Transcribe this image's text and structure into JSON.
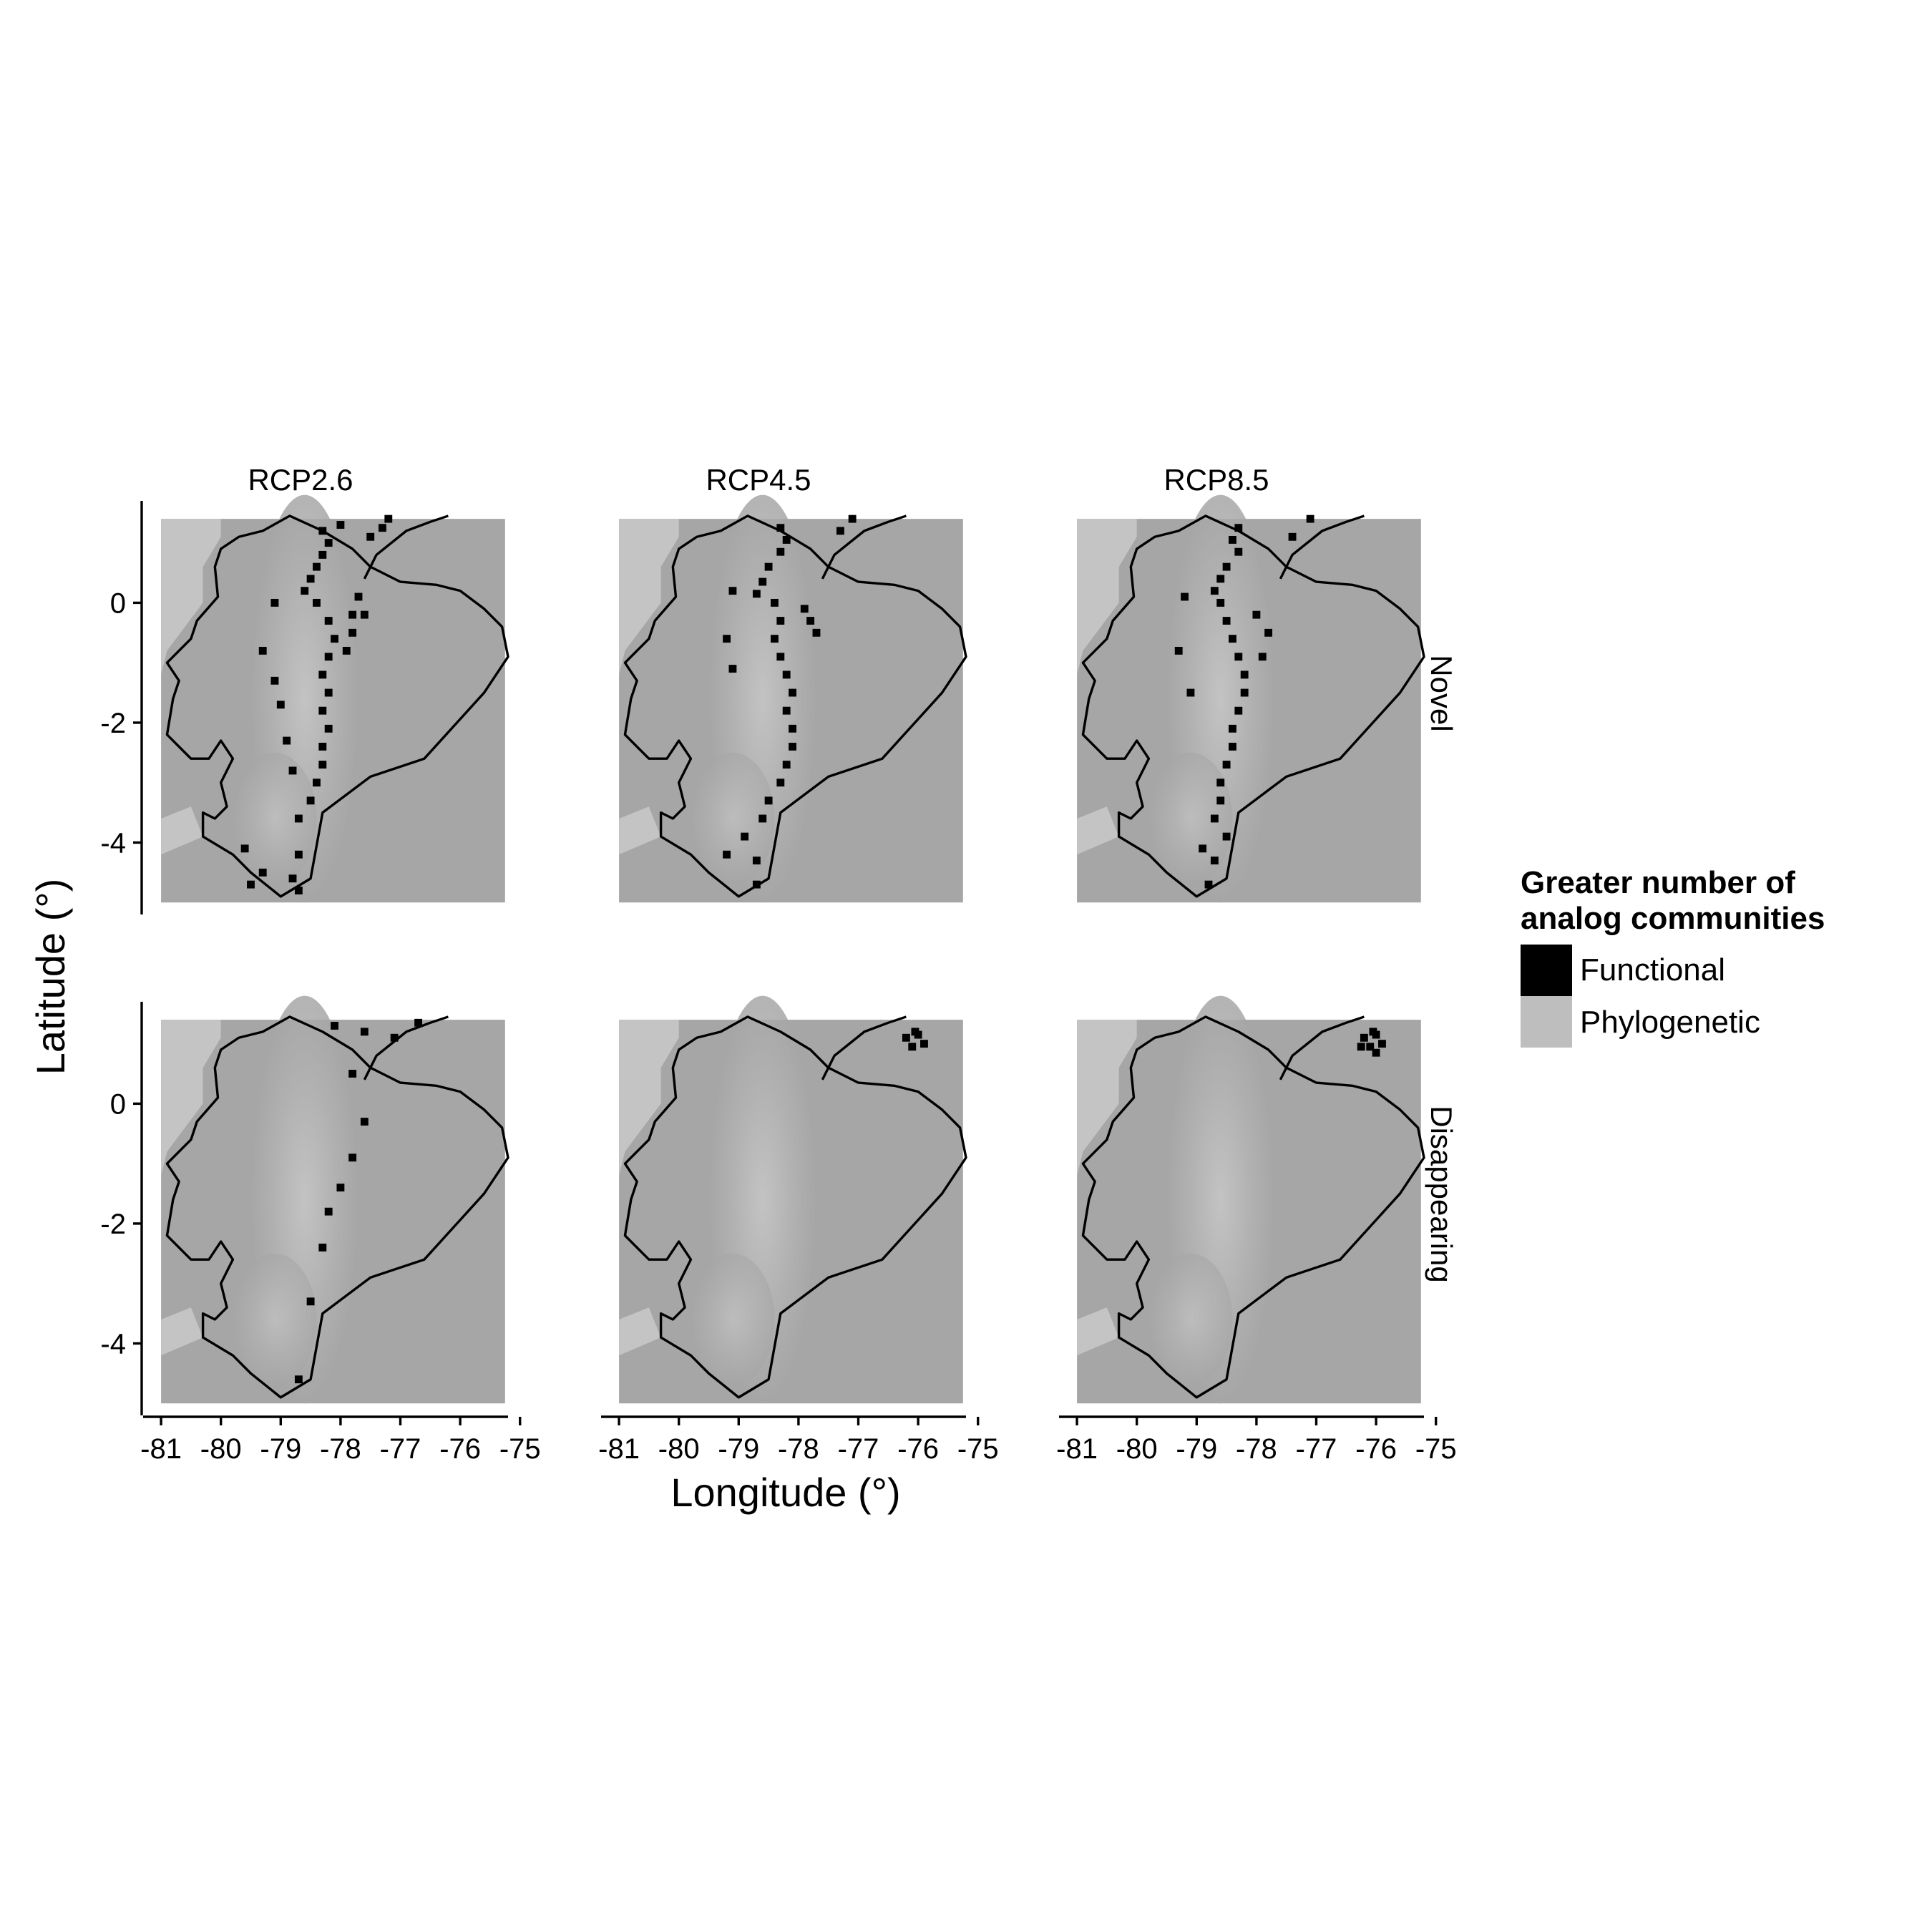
{
  "chart_data": {
    "type": "heatmap",
    "columns": [
      "RCP2.6",
      "RCP4.5",
      "RCP8.5"
    ],
    "rows": [
      "Novel",
      "Disappearing"
    ],
    "xlabel": "Longitude (°)",
    "ylabel": "Latitude (°)",
    "xlim": [
      -81.3,
      -75.2
    ],
    "ylim": [
      -5.2,
      1.7
    ],
    "x_ticks": [
      -81,
      -80,
      -79,
      -78,
      -77,
      -76,
      -75
    ],
    "x_tick_labels": [
      "-81",
      "-80",
      "-79",
      "-78",
      "-77",
      "-76",
      "-75"
    ],
    "y_ticks": [
      0,
      -2,
      -4
    ],
    "y_tick_labels": [
      "0",
      "-2",
      "-4"
    ],
    "grid": false,
    "legend": {
      "title_line1": "Greater number of",
      "title_line2": "analog communities",
      "placement": "right",
      "entries": [
        {
          "label": "Functional",
          "color": "#000000"
        },
        {
          "label": "Phylogenetic",
          "color": "#bebebe"
        }
      ]
    },
    "raster_extent": {
      "lon": [
        -81.0,
        -75.25
      ],
      "lat": [
        -5.0,
        1.4
      ]
    },
    "coastline": [
      [
        -78.85,
        1.45
      ],
      [
        -79.3,
        1.2
      ],
      [
        -79.7,
        1.1
      ],
      [
        -80.0,
        0.9
      ],
      [
        -80.1,
        0.6
      ],
      [
        -80.05,
        0.1
      ],
      [
        -80.4,
        -0.3
      ],
      [
        -80.5,
        -0.6
      ],
      [
        -80.9,
        -1.0
      ],
      [
        -80.7,
        -1.3
      ],
      [
        -80.8,
        -1.6
      ],
      [
        -80.9,
        -2.2
      ],
      [
        -80.5,
        -2.6
      ],
      [
        -80.2,
        -2.6
      ],
      [
        -80.0,
        -2.3
      ],
      [
        -79.8,
        -2.6
      ],
      [
        -80.0,
        -3.0
      ],
      [
        -79.9,
        -3.4
      ],
      [
        -80.1,
        -3.6
      ],
      [
        -80.3,
        -3.5
      ],
      [
        -80.3,
        -3.9
      ],
      [
        -79.8,
        -4.2
      ],
      [
        -79.5,
        -4.5
      ],
      [
        -79.0,
        -4.9
      ],
      [
        -78.5,
        -4.6
      ],
      [
        -78.3,
        -3.5
      ],
      [
        -77.5,
        -2.9
      ],
      [
        -76.6,
        -2.6
      ],
      [
        -75.6,
        -1.5
      ],
      [
        -75.2,
        -0.9
      ],
      [
        -75.3,
        -0.4
      ],
      [
        -75.6,
        -0.1
      ],
      [
        -76.0,
        0.2
      ],
      [
        -76.4,
        0.3
      ],
      [
        -77.0,
        0.35
      ],
      [
        -77.5,
        0.6
      ],
      [
        -77.8,
        0.9
      ],
      [
        -78.3,
        1.2
      ],
      [
        -78.85,
        1.45
      ]
    ],
    "north_border": [
      [
        -77.6,
        0.4
      ],
      [
        -77.4,
        0.8
      ],
      [
        -76.9,
        1.2
      ],
      [
        -76.5,
        1.35
      ],
      [
        -76.2,
        1.45
      ]
    ],
    "series": [
      {
        "name": "Novel",
        "panels": [
          {
            "column": "RCP2.6",
            "functional_cells": [
              [
                -78.3,
                1.2
              ],
              [
                -78.2,
                1.0
              ],
              [
                -78.3,
                0.8
              ],
              [
                -78.4,
                0.6
              ],
              [
                -78.5,
                0.4
              ],
              [
                -78.6,
                0.2
              ],
              [
                -78.4,
                0.0
              ],
              [
                -78.2,
                -0.3
              ],
              [
                -78.1,
                -0.6
              ],
              [
                -78.2,
                -0.9
              ],
              [
                -78.3,
                -1.2
              ],
              [
                -78.2,
                -1.5
              ],
              [
                -78.3,
                -1.8
              ],
              [
                -78.2,
                -2.1
              ],
              [
                -78.3,
                -2.4
              ],
              [
                -78.3,
                -2.7
              ],
              [
                -78.4,
                -3.0
              ],
              [
                -78.5,
                -3.3
              ],
              [
                -78.7,
                -3.6
              ],
              [
                -78.7,
                -4.2
              ],
              [
                -78.8,
                -4.6
              ],
              [
                -78.7,
                -4.8
              ],
              [
                -77.8,
                -0.2
              ],
              [
                -77.8,
                -0.5
              ],
              [
                -77.9,
                -0.8
              ],
              [
                -77.6,
                -0.2
              ],
              [
                -77.7,
                0.1
              ],
              [
                -78.0,
                1.3
              ],
              [
                -77.2,
                1.4
              ],
              [
                -77.3,
                1.25
              ],
              [
                -77.5,
                1.1
              ],
              [
                -79.1,
                0.0
              ],
              [
                -79.3,
                -0.8
              ],
              [
                -79.1,
                -1.3
              ],
              [
                -79.0,
                -1.7
              ],
              [
                -78.9,
                -2.3
              ],
              [
                -78.8,
                -2.8
              ],
              [
                -79.6,
                -4.1
              ],
              [
                -79.3,
                -4.5
              ],
              [
                -79.5,
                -4.7
              ]
            ]
          },
          {
            "column": "RCP4.5",
            "functional_cells": [
              [
                -78.3,
                1.25
              ],
              [
                -78.2,
                1.05
              ],
              [
                -78.3,
                0.85
              ],
              [
                -78.5,
                0.6
              ],
              [
                -78.6,
                0.35
              ],
              [
                -78.7,
                0.15
              ],
              [
                -78.4,
                0.0
              ],
              [
                -78.3,
                -0.3
              ],
              [
                -78.4,
                -0.6
              ],
              [
                -78.3,
                -0.9
              ],
              [
                -78.2,
                -1.2
              ],
              [
                -78.1,
                -1.5
              ],
              [
                -78.2,
                -1.8
              ],
              [
                -78.1,
                -2.1
              ],
              [
                -78.1,
                -2.4
              ],
              [
                -78.2,
                -2.7
              ],
              [
                -78.3,
                -3.0
              ],
              [
                -78.5,
                -3.3
              ],
              [
                -78.6,
                -3.6
              ],
              [
                -78.7,
                -4.3
              ],
              [
                -78.7,
                -4.7
              ],
              [
                -77.8,
                -0.3
              ],
              [
                -77.7,
                -0.5
              ],
              [
                -77.9,
                -0.1
              ],
              [
                -77.1,
                1.4
              ],
              [
                -77.3,
                1.2
              ],
              [
                -79.1,
                0.2
              ],
              [
                -79.2,
                -0.6
              ],
              [
                -79.1,
                -1.1
              ],
              [
                -78.9,
                -3.9
              ],
              [
                -79.2,
                -4.2
              ]
            ]
          },
          {
            "column": "RCP8.5",
            "functional_cells": [
              [
                -78.3,
                1.25
              ],
              [
                -78.4,
                1.05
              ],
              [
                -78.3,
                0.85
              ],
              [
                -78.5,
                0.6
              ],
              [
                -78.6,
                0.4
              ],
              [
                -78.7,
                0.2
              ],
              [
                -78.6,
                0.0
              ],
              [
                -78.5,
                -0.3
              ],
              [
                -78.4,
                -0.6
              ],
              [
                -78.3,
                -0.9
              ],
              [
                -78.2,
                -1.2
              ],
              [
                -78.2,
                -1.5
              ],
              [
                -78.3,
                -1.8
              ],
              [
                -78.4,
                -2.1
              ],
              [
                -78.4,
                -2.4
              ],
              [
                -78.5,
                -2.7
              ],
              [
                -78.6,
                -3.0
              ],
              [
                -78.6,
                -3.3
              ],
              [
                -78.7,
                -3.6
              ],
              [
                -78.7,
                -4.3
              ],
              [
                -78.8,
                -4.7
              ],
              [
                -78.0,
                -0.2
              ],
              [
                -77.8,
                -0.5
              ],
              [
                -77.9,
                -0.9
              ],
              [
                -77.1,
                1.4
              ],
              [
                -77.4,
                1.1
              ],
              [
                -79.2,
                0.1
              ],
              [
                -79.3,
                -0.8
              ],
              [
                -79.1,
                -1.5
              ],
              [
                -78.5,
                -3.9
              ],
              [
                -78.9,
                -4.1
              ]
            ]
          }
        ]
      },
      {
        "name": "Disappearing",
        "panels": [
          {
            "column": "RCP2.6",
            "functional_cells": [
              [
                -78.1,
                1.3
              ],
              [
                -77.6,
                1.2
              ],
              [
                -77.1,
                1.1
              ],
              [
                -76.7,
                1.35
              ],
              [
                -77.8,
                0.5
              ],
              [
                -77.6,
                -0.3
              ],
              [
                -77.8,
                -0.9
              ],
              [
                -78.0,
                -1.4
              ],
              [
                -78.2,
                -1.8
              ],
              [
                -78.3,
                -2.4
              ],
              [
                -78.5,
                -3.3
              ],
              [
                -78.7,
                -4.6
              ]
            ]
          },
          {
            "column": "RCP4.5",
            "functional_cells": [
              [
                -76.2,
                1.1
              ],
              [
                -76.0,
                1.15
              ],
              [
                -76.1,
                0.95
              ],
              [
                -75.9,
                1.0
              ],
              [
                -76.05,
                1.2
              ]
            ]
          },
          {
            "column": "RCP8.5",
            "functional_cells": [
              [
                -76.2,
                1.1
              ],
              [
                -76.0,
                1.15
              ],
              [
                -76.1,
                0.95
              ],
              [
                -75.9,
                1.0
              ],
              [
                -76.05,
                1.2
              ],
              [
                -76.0,
                0.85
              ],
              [
                -76.25,
                0.95
              ]
            ]
          }
        ]
      }
    ]
  }
}
